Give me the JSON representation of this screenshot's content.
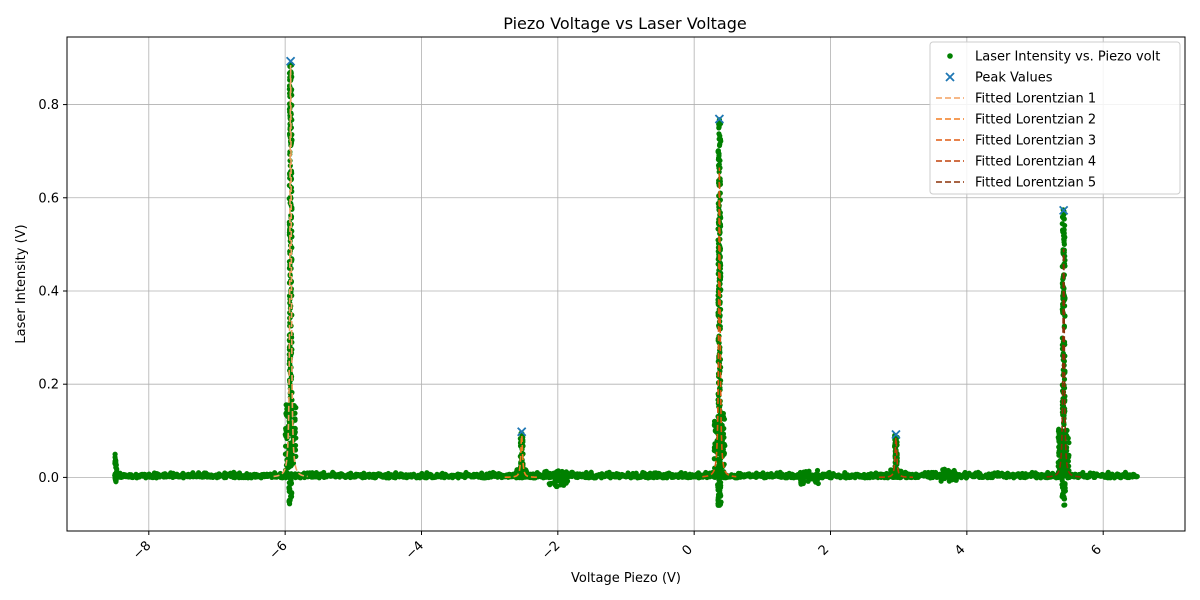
{
  "chart_data": {
    "type": "scatter",
    "title": "Piezo Voltage vs Laser Voltage",
    "xlabel": "Voltage Piezo (V)",
    "ylabel": "Laser Intensity (V)",
    "xlim": [
      -9.2,
      7.2
    ],
    "ylim": [
      -0.115,
      0.945
    ],
    "xticks": [
      -8,
      -6,
      -4,
      -2,
      0,
      2,
      4,
      6
    ],
    "xtick_labels": [
      "−8",
      "−6",
      "−4",
      "−2",
      "0",
      "2",
      "4",
      "6"
    ],
    "yticks": [
      0.0,
      0.2,
      0.4,
      0.6,
      0.8
    ],
    "ytick_labels": [
      "0.0",
      "0.2",
      "0.4",
      "0.6",
      "0.8"
    ],
    "grid": true,
    "legend_position": "top-right",
    "scan_range": [
      -8.5,
      6.5
    ],
    "series": [
      {
        "name": "Laser Intensity vs. Piezo volt",
        "kind": "scatter",
        "color": "#008000",
        "peaks": [
          {
            "x": -5.92,
            "height": 0.89
          },
          {
            "x": -2.53,
            "height": 0.095
          },
          {
            "x": 0.37,
            "height": 0.77
          },
          {
            "x": 2.96,
            "height": 0.09
          },
          {
            "x": 5.42,
            "height": 0.575
          }
        ]
      },
      {
        "name": "Peak Values",
        "kind": "marker-x",
        "color": "#1f77b4",
        "x": [
          -5.92,
          -2.53,
          0.37,
          2.96,
          5.42
        ],
        "y": [
          0.893,
          0.098,
          0.769,
          0.092,
          0.573
        ]
      },
      {
        "name": "Fitted Lorentzian 1",
        "kind": "dashed",
        "color": "#f4a060",
        "center": -5.92,
        "amplitude": 0.885,
        "gamma": 0.012
      },
      {
        "name": "Fitted Lorentzian 2",
        "kind": "dashed",
        "color": "#f47d20",
        "center": -2.53,
        "amplitude": 0.09,
        "gamma": 0.015
      },
      {
        "name": "Fitted Lorentzian 3",
        "kind": "dashed",
        "color": "#e05a10",
        "center": 0.37,
        "amplitude": 0.665,
        "gamma": 0.012
      },
      {
        "name": "Fitted Lorentzian 4",
        "kind": "dashed",
        "color": "#c04008",
        "center": 2.96,
        "amplitude": 0.085,
        "gamma": 0.015
      },
      {
        "name": "Fitted Lorentzian 5",
        "kind": "dashed",
        "color": "#8b3006",
        "center": 5.42,
        "amplitude": 0.49,
        "gamma": 0.012
      }
    ]
  }
}
